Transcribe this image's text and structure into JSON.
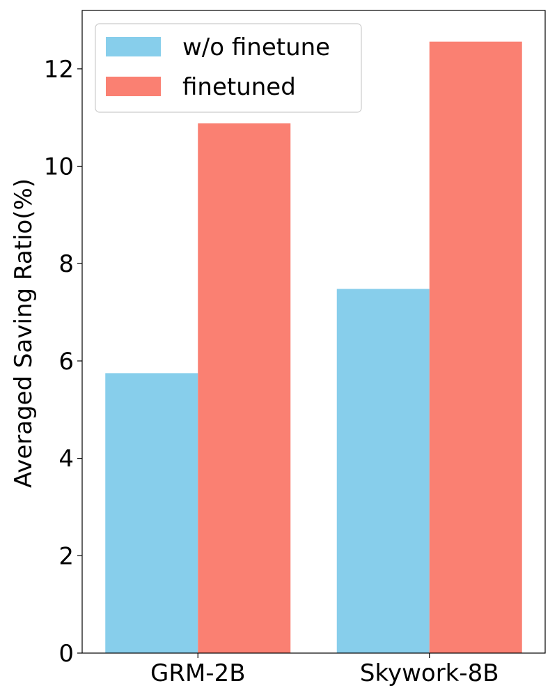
{
  "chart_data": {
    "type": "bar",
    "categories": [
      "GRM-2B",
      "Skywork-8B"
    ],
    "series": [
      {
        "name": "w/o finetune",
        "values": [
          5.75,
          7.48
        ],
        "color": "#87CEEB"
      },
      {
        "name": "finetuned",
        "values": [
          10.88,
          12.56
        ],
        "color": "#FA8072"
      }
    ],
    "title": "",
    "xlabel": "",
    "ylabel": "Averaged Saving Ratio(%)",
    "ylim": [
      0,
      13.2
    ],
    "yticks": [
      0,
      2,
      4,
      6,
      8,
      10,
      12
    ],
    "grid": false,
    "legend_position": "top-left"
  }
}
